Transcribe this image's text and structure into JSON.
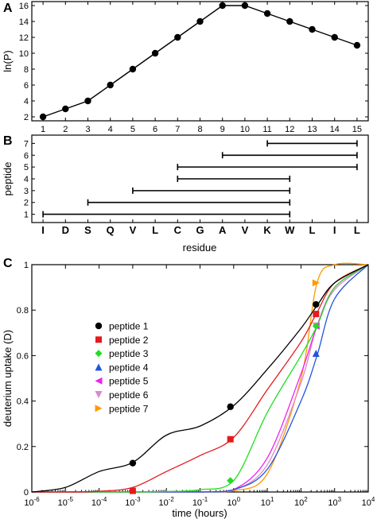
{
  "panel_labels": [
    "A",
    "B",
    "C"
  ],
  "chart_data": [
    {
      "type": "line",
      "panel": "A",
      "xlabel": "",
      "ylabel": "ln(P)",
      "xlim": [
        0.5,
        15.5
      ],
      "ylim": [
        1.5,
        16.5
      ],
      "x_ticks": [
        1,
        2,
        3,
        4,
        5,
        6,
        7,
        8,
        9,
        10,
        11,
        12,
        13,
        14,
        15
      ],
      "y_ticks": [
        2,
        4,
        6,
        8,
        10,
        12,
        14,
        16
      ],
      "grid": false,
      "x": [
        1,
        2,
        3,
        4,
        5,
        6,
        7,
        8,
        9,
        10,
        11,
        12,
        13,
        14,
        15
      ],
      "y": [
        2,
        3,
        4,
        6,
        8,
        10,
        12,
        14,
        16,
        16,
        15,
        14,
        13,
        12,
        11
      ]
    },
    {
      "type": "range",
      "panel": "B",
      "xlabel": "residue",
      "ylabel": "peptide",
      "residues": [
        "I",
        "D",
        "S",
        "Q",
        "V",
        "L",
        "C",
        "G",
        "A",
        "V",
        "K",
        "W",
        "L",
        "I",
        "L"
      ],
      "y_ticks": [
        1,
        2,
        3,
        4,
        5,
        6,
        7
      ],
      "peptides": [
        {
          "peptide": 1,
          "start": 1,
          "end": 12
        },
        {
          "peptide": 2,
          "start": 3,
          "end": 12
        },
        {
          "peptide": 3,
          "start": 5,
          "end": 12
        },
        {
          "peptide": 4,
          "start": 7,
          "end": 12
        },
        {
          "peptide": 5,
          "start": 7,
          "end": 15
        },
        {
          "peptide": 6,
          "start": 9,
          "end": 15
        },
        {
          "peptide": 7,
          "start": 11,
          "end": 15
        }
      ]
    },
    {
      "type": "line",
      "panel": "C",
      "xlabel": "time (hours)",
      "ylabel": "deuterium uptake (D)",
      "xscale": "log",
      "xlim": [
        1e-06,
        10000.0
      ],
      "ylim": [
        0,
        1
      ],
      "x_ticks": [
        {
          "exp": -6,
          "label": "10",
          "sup": "-6"
        },
        {
          "exp": -5,
          "label": "10",
          "sup": "-5"
        },
        {
          "exp": -4,
          "label": "10",
          "sup": "-4"
        },
        {
          "exp": -3,
          "label": "10",
          "sup": "-3"
        },
        {
          "exp": -2,
          "label": "10",
          "sup": "-2"
        },
        {
          "exp": -1,
          "label": "10",
          "sup": "-1"
        },
        {
          "exp": 0,
          "label": "10",
          "sup": "0"
        },
        {
          "exp": 1,
          "label": "10",
          "sup": "1"
        },
        {
          "exp": 2,
          "label": "10",
          "sup": "2"
        },
        {
          "exp": 3,
          "label": "10",
          "sup": "3"
        },
        {
          "exp": 4,
          "label": "10",
          "sup": "4"
        }
      ],
      "y_ticks": [
        {
          "value": 0,
          "label": "0"
        },
        {
          "value": 0.2,
          "label": "0.2"
        },
        {
          "value": 0.4,
          "label": "0.4"
        },
        {
          "value": 0.6,
          "label": "0.6"
        },
        {
          "value": 0.8,
          "label": "0.8"
        },
        {
          "value": 1,
          "label": "1"
        }
      ],
      "legend_position": "left-middle",
      "series": [
        {
          "name": "peptide 1",
          "color": "#000000",
          "marker": "circle",
          "x": [
            1e-06,
            1e-05,
            0.0001,
            0.001,
            0.01,
            0.1,
            1,
            10,
            100,
            300,
            1000,
            10000.0
          ],
          "y": [
            0,
            0.02,
            0.09,
            0.13,
            0.25,
            0.29,
            0.38,
            0.54,
            0.72,
            0.82,
            0.92,
            1
          ],
          "markers": [
            {
              "x": 0.001,
              "y": 0.127
            },
            {
              "x": 0.8,
              "y": 0.375
            },
            {
              "x": 280,
              "y": 0.825
            }
          ]
        },
        {
          "name": "peptide 2",
          "color": "#e41a1c",
          "marker": "square",
          "x": [
            1e-06,
            1e-05,
            0.0001,
            0.001,
            0.01,
            0.1,
            1,
            10,
            100,
            300,
            1000,
            10000.0
          ],
          "y": [
            0,
            0,
            0.003,
            0.02,
            0.09,
            0.16,
            0.24,
            0.45,
            0.66,
            0.79,
            0.92,
            1
          ],
          "markers": [
            {
              "x": 0.001,
              "y": 0.005
            },
            {
              "x": 0.8,
              "y": 0.232
            },
            {
              "x": 280,
              "y": 0.783
            }
          ]
        },
        {
          "name": "peptide 3",
          "color": "#22dd22",
          "marker": "diamond",
          "x": [
            1e-06,
            0.001,
            0.01,
            0.1,
            1,
            10,
            100,
            300,
            1000,
            10000.0
          ],
          "y": [
            0,
            0,
            0.002,
            0.01,
            0.05,
            0.35,
            0.6,
            0.73,
            0.9,
            1
          ],
          "markers": [
            {
              "x": 0.8,
              "y": 0.05
            },
            {
              "x": 280,
              "y": 0.73
            }
          ]
        },
        {
          "name": "peptide 4",
          "color": "#2255dd",
          "marker": "triangle-up",
          "x": [
            1e-06,
            0.1,
            1,
            10,
            100,
            300,
            1000,
            10000.0
          ],
          "y": [
            0,
            0,
            0.01,
            0.1,
            0.4,
            0.6,
            0.85,
            1
          ],
          "markers": [
            {
              "x": 280,
              "y": 0.61
            }
          ]
        },
        {
          "name": "peptide 5",
          "color": "#ee22ee",
          "marker": "triangle-left",
          "x": [
            1e-06,
            0.1,
            1,
            10,
            100,
            300,
            1000,
            10000.0
          ],
          "y": [
            0,
            0,
            0.01,
            0.15,
            0.52,
            0.73,
            0.9,
            1
          ],
          "markers": [
            {
              "x": 280,
              "y": 0.73
            }
          ]
        },
        {
          "name": "peptide 6",
          "color": "#dd88cc",
          "marker": "triangle-down",
          "x": [
            1e-06,
            0.1,
            1,
            10,
            100,
            300,
            1000,
            10000.0
          ],
          "y": [
            0,
            0,
            0.008,
            0.12,
            0.48,
            0.73,
            0.89,
            1
          ],
          "markers": [
            {
              "x": 280,
              "y": 0.73
            }
          ]
        },
        {
          "name": "peptide 7",
          "color": "#ff9900",
          "marker": "triangle-right",
          "x": [
            1e-06,
            0.1,
            1,
            10,
            100,
            300,
            1000,
            10000.0
          ],
          "y": [
            0,
            0,
            0.005,
            0.08,
            0.5,
            0.92,
            1,
            1
          ],
          "markers": [
            {
              "x": 280,
              "y": 0.92
            }
          ]
        }
      ]
    }
  ]
}
